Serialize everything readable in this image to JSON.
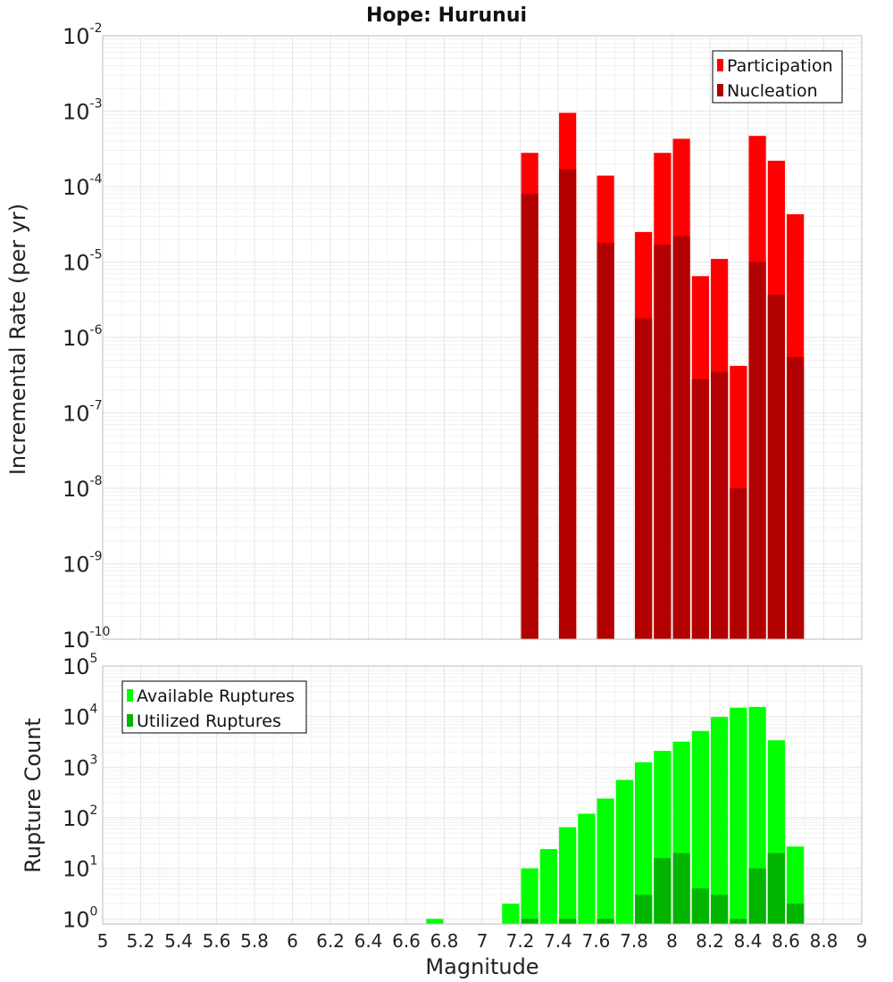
{
  "title": "Hope: Hurunui",
  "colors": {
    "participation": "#ff0000",
    "nucleation": "#b20000",
    "available": "#00ff00",
    "utilized": "#00b400"
  },
  "chart_data": [
    {
      "type": "bar",
      "panel": "top",
      "scale": "log",
      "xlabel": "",
      "ylabel": "Incremental Rate (per yr)",
      "xlim": [
        5,
        9
      ],
      "ylim_exp": [
        -10,
        -2
      ],
      "yticks_exp": [
        -10,
        -9,
        -8,
        -7,
        -6,
        -5,
        -4,
        -3,
        -2
      ],
      "grid": true,
      "legend_position": "top-right",
      "series": [
        {
          "name": "Participation",
          "color_key": "participation",
          "x": [
            7.25,
            7.45,
            7.65,
            7.85,
            7.95,
            8.05,
            8.15,
            8.25,
            8.35,
            8.45,
            8.55,
            8.65
          ],
          "values": [
            0.00028,
            0.00095,
            0.00014,
            2.5e-05,
            0.00028,
            0.00043,
            6.5e-06,
            1.1e-05,
            4.2e-07,
            0.00047,
            0.00022,
            4.3e-05
          ]
        },
        {
          "name": "Nucleation",
          "color_key": "nucleation",
          "x": [
            7.25,
            7.45,
            7.65,
            7.85,
            7.95,
            8.05,
            8.15,
            8.25,
            8.35,
            8.45,
            8.55,
            8.65
          ],
          "values": [
            8e-05,
            0.00017,
            1.8e-05,
            1.8e-06,
            1.7e-05,
            2.2e-05,
            2.8e-07,
            3.5e-07,
            1e-08,
            1e-05,
            3.7e-06,
            5.5e-07
          ]
        }
      ]
    },
    {
      "type": "bar",
      "panel": "bottom",
      "scale": "log",
      "xlabel": "Magnitude",
      "ylabel": "Rupture Count",
      "xlim": [
        5,
        9
      ],
      "ylim_exp": [
        -0.1,
        5
      ],
      "yticks_exp": [
        0,
        1,
        2,
        3,
        4,
        5
      ],
      "xticks": [
        "5",
        "5.2",
        "5.4",
        "5.6",
        "5.8",
        "6",
        "6.2",
        "6.4",
        "6.6",
        "6.8",
        "7",
        "7.2",
        "7.4",
        "7.6",
        "7.8",
        "8",
        "8.2",
        "8.4",
        "8.6",
        "8.8",
        "9"
      ],
      "grid": true,
      "legend_position": "top-left",
      "series": [
        {
          "name": "Available Ruptures",
          "color_key": "available",
          "x": [
            6.75,
            7.15,
            7.25,
            7.35,
            7.45,
            7.55,
            7.65,
            7.75,
            7.85,
            7.95,
            8.05,
            8.15,
            8.25,
            8.35,
            8.45,
            8.55,
            8.65
          ],
          "values": [
            1,
            2,
            10,
            24,
            65,
            120,
            240,
            560,
            1250,
            2100,
            3200,
            5200,
            9800,
            15000,
            15500,
            3400,
            27
          ]
        },
        {
          "name": "Utilized Ruptures",
          "color_key": "utilized",
          "x": [
            7.25,
            7.45,
            7.65,
            7.85,
            7.95,
            8.05,
            8.15,
            8.25,
            8.35,
            8.45,
            8.55,
            8.65
          ],
          "values": [
            1,
            1,
            1,
            3,
            16,
            20,
            4,
            3,
            1,
            10,
            20,
            2
          ]
        }
      ]
    }
  ]
}
